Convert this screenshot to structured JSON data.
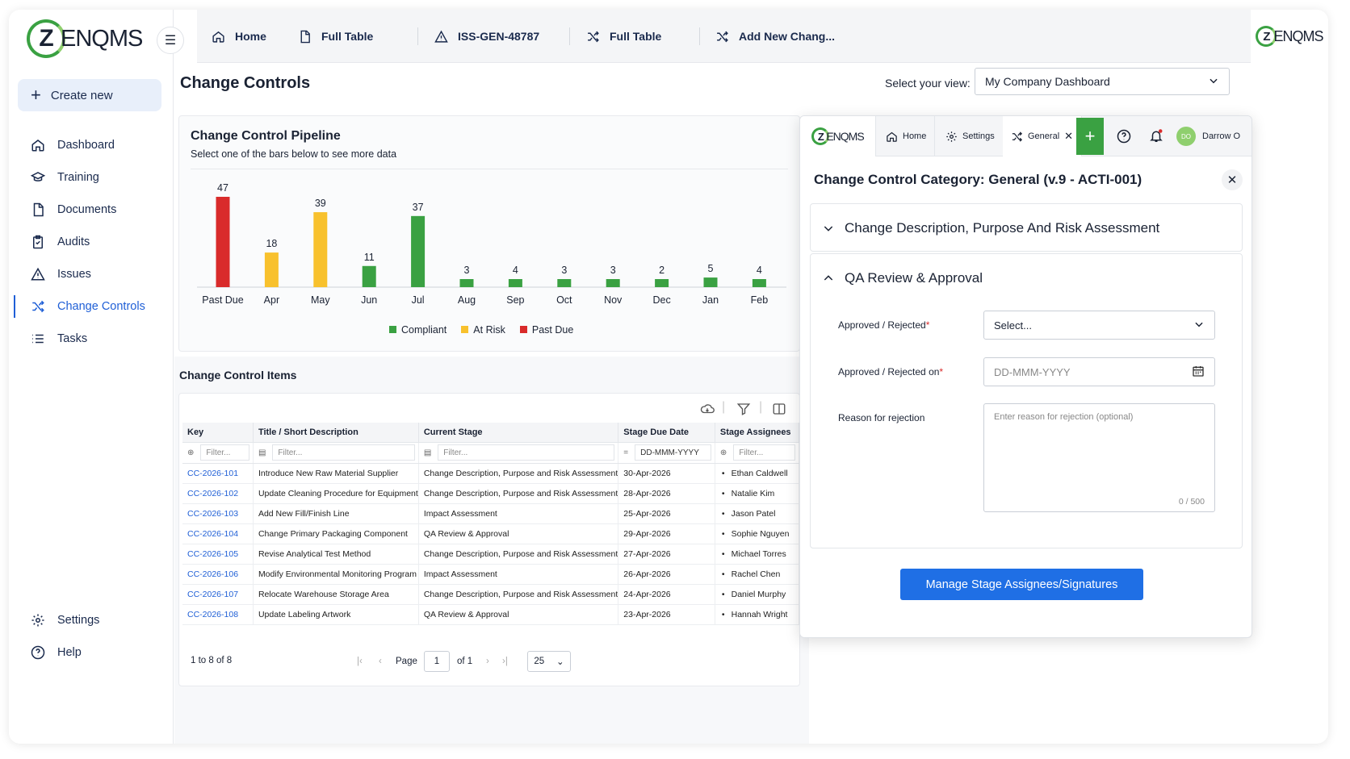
{
  "app": {
    "brand": "ZENQMS",
    "brand_letter": "Z",
    "brand_rest": "ENQMS"
  },
  "sidebar": {
    "create_label": "Create new",
    "items": [
      {
        "label": "Dashboard",
        "icon": "home-icon"
      },
      {
        "label": "Training",
        "icon": "graduation-cap-icon"
      },
      {
        "label": "Documents",
        "icon": "document-icon"
      },
      {
        "label": "Audits",
        "icon": "clipboard-icon"
      },
      {
        "label": "Issues",
        "icon": "warning-icon"
      },
      {
        "label": "Change Controls",
        "icon": "shuffle-icon",
        "active": true
      },
      {
        "label": "Tasks",
        "icon": "list-icon"
      }
    ],
    "bottom": [
      {
        "label": "Settings",
        "icon": "gear-icon"
      },
      {
        "label": "Help",
        "icon": "help-icon"
      }
    ]
  },
  "topbar": {
    "tabs": [
      {
        "label": "Home",
        "icon": "home-icon"
      },
      {
        "label": "Full Table",
        "icon": "document-icon"
      },
      {
        "label": "ISS-GEN-48787",
        "icon": "warning-icon"
      },
      {
        "label": "Full Table",
        "icon": "shuffle-icon"
      },
      {
        "label": "Add New Chang...",
        "icon": "shuffle-icon"
      }
    ]
  },
  "page": {
    "title": "Change Controls",
    "view_label": "Select your view:",
    "view_value": "My Company Dashboard"
  },
  "pipeline": {
    "title": "Change Control Pipeline",
    "subtitle": "Select one of the bars below to see more data"
  },
  "chart_data": {
    "type": "bar",
    "categories": [
      "Past Due",
      "Apr",
      "May",
      "Jun",
      "Jul",
      "Aug",
      "Sep",
      "Oct",
      "Nov",
      "Dec",
      "Jan",
      "Feb"
    ],
    "values": [
      47,
      18,
      39,
      11,
      37,
      3,
      4,
      3,
      3,
      2,
      5,
      4
    ],
    "bar_status": [
      "Past Due",
      "At Risk",
      "At Risk",
      "Compliant",
      "Compliant",
      "Compliant",
      "Compliant",
      "Compliant",
      "Compliant",
      "Compliant",
      "Compliant",
      "Compliant"
    ],
    "legend": [
      {
        "name": "Compliant",
        "color": "#3aa142"
      },
      {
        "name": "At Risk",
        "color": "#f8c12d"
      },
      {
        "name": "Past Due",
        "color": "#d92b2b"
      }
    ],
    "ylim": [
      0,
      47
    ],
    "grid": false,
    "legend_position": "bottom"
  },
  "items": {
    "title": "Change Control Items",
    "columns": [
      "Key",
      "Title / Short Description",
      "Current Stage",
      "Stage Due Date",
      "Stage Assignees"
    ],
    "filter_placeholder": "Filter...",
    "date_placeholder": "DD-MMM-YYYY",
    "rows": [
      [
        "CC-2026-101",
        "Introduce New Raw Material Supplier",
        "Change Description, Purpose and Risk Assessment",
        "30-Apr-2026",
        "Ethan Caldwell"
      ],
      [
        "CC-2026-102",
        "Update Cleaning Procedure for Equipment",
        "Change Description, Purpose and Risk Assessment",
        "28-Apr-2026",
        "Natalie Kim"
      ],
      [
        "CC-2026-103",
        "Add New Fill/Finish Line",
        "Impact Assessment",
        "25-Apr-2026",
        "Jason Patel"
      ],
      [
        "CC-2026-104",
        "Change Primary Packaging Component",
        "QA Review & Approval",
        "29-Apr-2026",
        "Sophie Nguyen"
      ],
      [
        "CC-2026-105",
        "Revise Analytical Test Method",
        "Change Description, Purpose and Risk Assessment",
        "27-Apr-2026",
        "Michael Torres"
      ],
      [
        "CC-2026-106",
        "Modify Environmental Monitoring Program",
        "Impact Assessment",
        "26-Apr-2026",
        "Rachel Chen"
      ],
      [
        "CC-2026-107",
        "Relocate Warehouse Storage Area",
        "Change Description, Purpose and Risk Assessment",
        "24-Apr-2026",
        "Daniel Murphy"
      ],
      [
        "CC-2026-108",
        "Update Labeling Artwork",
        "QA Review & Approval",
        "23-Apr-2026",
        "Hannah Wright"
      ]
    ],
    "pager": {
      "count": "1 to 8 of 8",
      "page_label": "Page",
      "page": "1",
      "of": "of 1",
      "page_size": "25"
    }
  },
  "panel": {
    "tabs": {
      "home": "Home",
      "settings": "Settings",
      "general": "General",
      "user": "Darrow O",
      "avatar_initials": "DO"
    },
    "title": "Change Control Category: General (v.9 - ACTI-001)",
    "section1": "Change Description, Purpose And Risk Assessment",
    "section2": "QA Review & Approval",
    "fields": {
      "approved_label": "Approved / Rejected",
      "approved_value": "Select...",
      "date_label": "Approved / Rejected on",
      "date_placeholder": "DD-MMM-YYYY",
      "reason_label": "Reason for rejection",
      "reason_placeholder": "Enter reason for rejection (optional)",
      "reason_counter": "0 / 500",
      "required_mark": "*"
    },
    "manage_button": "Manage Stage Assignees/Signatures"
  }
}
